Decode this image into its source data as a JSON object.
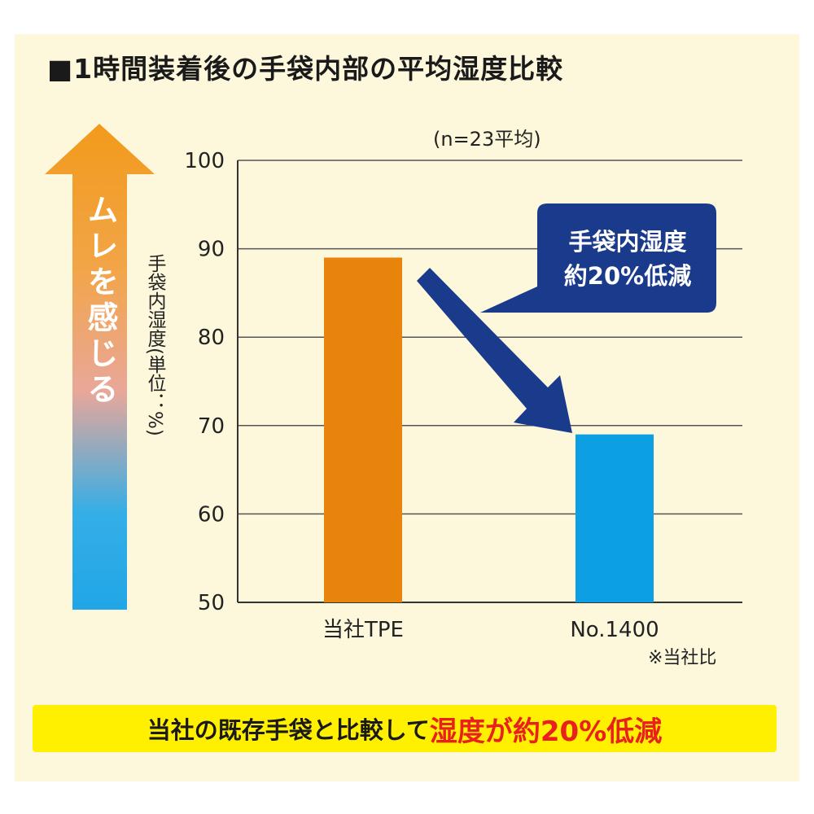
{
  "chart_data": {
    "type": "bar",
    "title": "■1時間装着後の手袋内部の平均湿度比較",
    "subtitle": "(n=23平均)",
    "ylabel": "手袋内湿度(単位：%)",
    "categories": [
      "当社TPE",
      "No.1400"
    ],
    "values": [
      89,
      69
    ],
    "ylim": [
      50,
      100
    ],
    "yticks": [
      "50",
      "60",
      "70",
      "80",
      "90",
      "100"
    ],
    "grid": true,
    "bar_colors": [
      "#e8830c",
      "#0c9fe3"
    ],
    "note": "※当社比",
    "callout": {
      "line1": "手袋内湿度",
      "line2": "約20%低減"
    },
    "side_arrow_label": "ムレを感じる"
  },
  "banner": {
    "part1": "当社の既存手袋と比較して",
    "part2": "湿度が約20%低減"
  },
  "colors": {
    "panel": "#fdf8dc",
    "callout": "#1a3a8c",
    "banner": "#fff000",
    "highlight": "#e8201e"
  }
}
